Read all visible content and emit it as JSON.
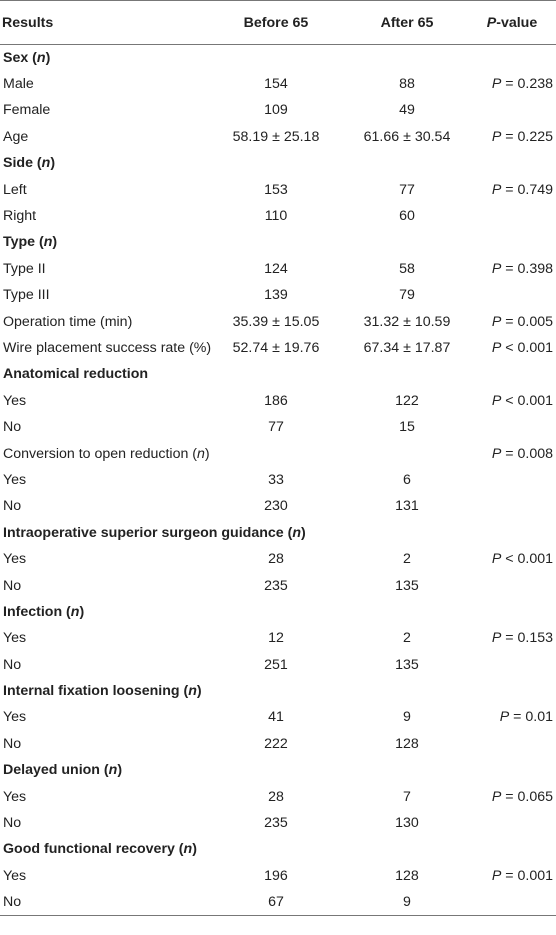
{
  "header": {
    "col1": "Results",
    "col2": "Before 65",
    "col3": "After 65",
    "col4_italic": "P",
    "col4_rest": "-value"
  },
  "rows": [
    {
      "kind": "section",
      "pre": "Sex (",
      "it": "n",
      "post": ")",
      "b": "",
      "a": "",
      "p": ""
    },
    {
      "kind": "data",
      "pre": "Male",
      "it": "",
      "post": "",
      "b": "154",
      "a": "88",
      "p": "P = 0.238"
    },
    {
      "kind": "data",
      "pre": "Female",
      "it": "",
      "post": "",
      "b": "109",
      "a": "49",
      "p": ""
    },
    {
      "kind": "data",
      "pre": "Age",
      "it": "",
      "post": "",
      "b": "58.19 ± 25.18",
      "a": "61.66 ± 30.54",
      "p": "P = 0.225"
    },
    {
      "kind": "section",
      "pre": "Side (",
      "it": "n",
      "post": ")",
      "b": "",
      "a": "",
      "p": ""
    },
    {
      "kind": "data",
      "pre": "Left",
      "it": "",
      "post": "",
      "b": "153",
      "a": "77",
      "p": "P = 0.749"
    },
    {
      "kind": "data",
      "pre": "Right",
      "it": "",
      "post": "",
      "b": "110",
      "a": "60",
      "p": ""
    },
    {
      "kind": "section",
      "pre": "Type (",
      "it": "n",
      "post": ")",
      "b": "",
      "a": "",
      "p": ""
    },
    {
      "kind": "data",
      "pre": "Type II",
      "it": "",
      "post": "",
      "b": "124",
      "a": "58",
      "p": "P = 0.398"
    },
    {
      "kind": "data",
      "pre": "Type III",
      "it": "",
      "post": "",
      "b": "139",
      "a": "79",
      "p": ""
    },
    {
      "kind": "data",
      "pre": "Operation time (min)",
      "it": "",
      "post": "",
      "b": "35.39 ± 15.05",
      "a": "31.32 ± 10.59",
      "p": "P = 0.005"
    },
    {
      "kind": "data",
      "pre": "Wire placement success rate (%)",
      "it": "",
      "post": "",
      "b": "52.74 ± 19.76",
      "a": "67.34 ± 17.87",
      "p": "P < 0.001"
    },
    {
      "kind": "section",
      "pre": "Anatomical reduction",
      "it": "",
      "post": "",
      "b": "",
      "a": "",
      "p": ""
    },
    {
      "kind": "data",
      "pre": "Yes",
      "it": "",
      "post": "",
      "b": "186",
      "a": "122",
      "p": "P < 0.001"
    },
    {
      "kind": "data",
      "pre": "No",
      "it": "",
      "post": "",
      "b": "77",
      "a": "15",
      "p": ""
    },
    {
      "kind": "data",
      "pre": "Conversion to open reduction (",
      "it": "n",
      "post": ")",
      "b": "",
      "a": "",
      "p": "P = 0.008"
    },
    {
      "kind": "data",
      "pre": "Yes",
      "it": "",
      "post": "",
      "b": "33",
      "a": "6",
      "p": ""
    },
    {
      "kind": "data",
      "pre": "No",
      "it": "",
      "post": "",
      "b": "230",
      "a": "131",
      "p": ""
    },
    {
      "kind": "section",
      "pre": "Intraoperative superior surgeon guidance (",
      "it": "n",
      "post": ")",
      "b": "",
      "a": "",
      "p": ""
    },
    {
      "kind": "data",
      "pre": "Yes",
      "it": "",
      "post": "",
      "b": "28",
      "a": "2",
      "p": "P < 0.001"
    },
    {
      "kind": "data",
      "pre": "No",
      "it": "",
      "post": "",
      "b": "235",
      "a": "135",
      "p": ""
    },
    {
      "kind": "section",
      "pre": "Infection (",
      "it": "n",
      "post": ")",
      "b": "",
      "a": "",
      "p": ""
    },
    {
      "kind": "data",
      "pre": "Yes",
      "it": "",
      "post": "",
      "b": "12",
      "a": "2",
      "p": "P = 0.153"
    },
    {
      "kind": "data",
      "pre": "No",
      "it": "",
      "post": "",
      "b": "251",
      "a": "135",
      "p": ""
    },
    {
      "kind": "section",
      "pre": "Internal fixation loosening (",
      "it": "n",
      "post": ")",
      "b": "",
      "a": "",
      "p": ""
    },
    {
      "kind": "data",
      "pre": "Yes",
      "it": "",
      "post": "",
      "b": "41",
      "a": "9",
      "p": "P = 0.01"
    },
    {
      "kind": "data",
      "pre": "No",
      "it": "",
      "post": "",
      "b": "222",
      "a": "128",
      "p": ""
    },
    {
      "kind": "section",
      "pre": "Delayed union (",
      "it": "n",
      "post": ")",
      "b": "",
      "a": "",
      "p": ""
    },
    {
      "kind": "data",
      "pre": "Yes",
      "it": "",
      "post": "",
      "b": "28",
      "a": "7",
      "p": "P = 0.065"
    },
    {
      "kind": "data",
      "pre": "No",
      "it": "",
      "post": "",
      "b": "235",
      "a": "130",
      "p": ""
    },
    {
      "kind": "section",
      "pre": "Good functional recovery (",
      "it": "n",
      "post": ")",
      "b": "",
      "a": "",
      "p": ""
    },
    {
      "kind": "data",
      "pre": "Yes",
      "it": "",
      "post": "",
      "b": "196",
      "a": "128",
      "p": "P = 0.001"
    },
    {
      "kind": "data",
      "pre": "No",
      "it": "",
      "post": "",
      "b": "67",
      "a": "9",
      "p": ""
    }
  ]
}
